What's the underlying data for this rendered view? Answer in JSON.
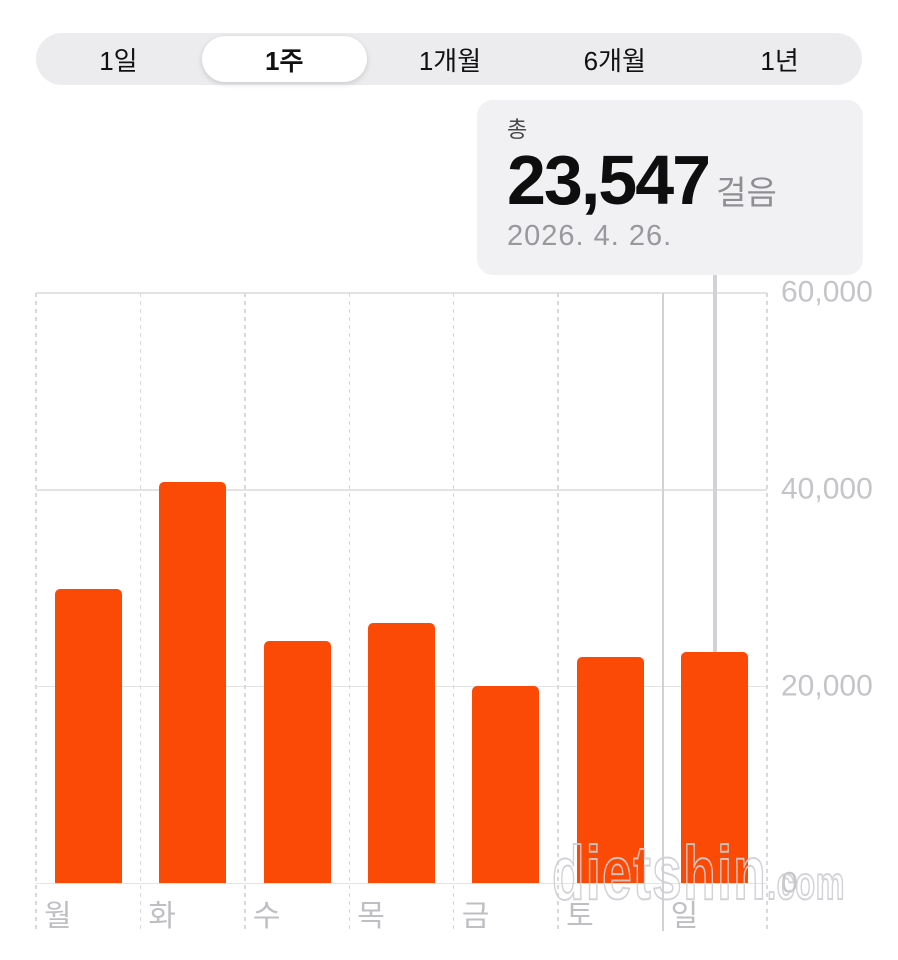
{
  "segmented_control": {
    "items": [
      {
        "label": "1일",
        "selected": false
      },
      {
        "label": "1주",
        "selected": true
      },
      {
        "label": "1개월",
        "selected": false
      },
      {
        "label": "6개월",
        "selected": false
      },
      {
        "label": "1년",
        "selected": false
      }
    ]
  },
  "callout": {
    "label": "총",
    "value": "23,547",
    "unit": "걸음",
    "date": "2026. 4. 26."
  },
  "watermark": {
    "main": "dietshin",
    "suffix": ".com"
  },
  "colors": {
    "bar": "#fb4a05",
    "grid_solid": "#e3e3e6",
    "grid_dashed": "#d9d9dd",
    "selected_divider": "#d2d2d6",
    "pointer": "#d2d2d6",
    "y_axis_label": "#c5c5c9",
    "x_axis_label": "#bfbfc3",
    "callout_bg": "#f1f1f4",
    "segment_track": "#ececee",
    "segment_selected_bg": "#ffffff"
  },
  "chart_data": {
    "type": "bar",
    "title": "",
    "categories": [
      "월",
      "화",
      "수",
      "목",
      "금",
      "토",
      "일"
    ],
    "values": [
      29900,
      40800,
      24600,
      26500,
      20100,
      23000,
      23547
    ],
    "unit": "걸음",
    "ylim": [
      0,
      60000
    ],
    "y_ticks": [
      {
        "value": 0,
        "label": "0"
      },
      {
        "value": 20000,
        "label": "20,000"
      },
      {
        "value": 40000,
        "label": "40,000"
      },
      {
        "value": 60000,
        "label": "60,000"
      }
    ],
    "selected_index": 6,
    "selected_value_label": "23,547",
    "grid": {
      "horizontal": "solid",
      "vertical": "dashed"
    },
    "legend": "none"
  }
}
